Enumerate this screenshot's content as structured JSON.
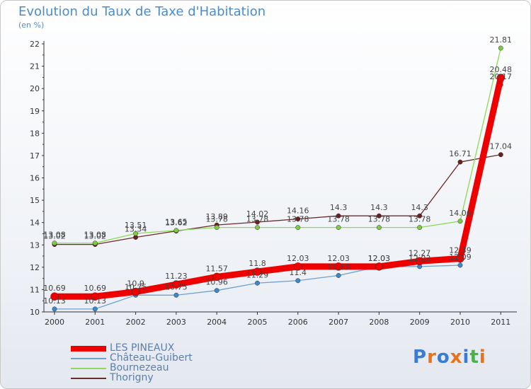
{
  "title": "Evolution du Taux de Taxe d'Habitation",
  "subtitle": "(en %)",
  "logo": "Proxiti",
  "chart_data": {
    "type": "line",
    "title": "Evolution du Taux de Taxe d'Habitation",
    "subtitle": "(en %)",
    "xlabel": "",
    "ylabel": "",
    "x": [
      "2000",
      "2001",
      "2002",
      "2003",
      "2004",
      "2005",
      "2006",
      "2007",
      "2008",
      "2009",
      "2010",
      "2011"
    ],
    "y_ticks": [
      "10",
      "11",
      "12",
      "13",
      "14",
      "15",
      "16",
      "17",
      "18",
      "19",
      "20",
      "21",
      "22"
    ],
    "ylim": [
      10,
      22
    ],
    "grid": false,
    "legend_position": "bottom-left",
    "series": [
      {
        "name": "LES PINEAUX",
        "color": "#ee0000",
        "values": [
          10.69,
          10.69,
          10.9,
          11.23,
          11.57,
          11.8,
          12.03,
          12.03,
          12.03,
          12.27,
          12.39,
          20.48
        ],
        "labels": [
          "10.69",
          "10.69",
          "10.9",
          "11.23",
          "11.57",
          "11.8",
          "12.03",
          "12.03",
          "12.03",
          "12.27",
          "12.39",
          "20.48"
        ]
      },
      {
        "name": "Château-Guibert",
        "color": "#6fa0cd",
        "values": [
          10.13,
          10.13,
          10.75,
          10.75,
          10.96,
          11.29,
          11.4,
          11.63,
          12.03,
          12.03,
          12.09,
          20.17
        ],
        "labels": [
          "10.13",
          "10.13",
          "10.75",
          "10.75",
          "10.96",
          "11.29",
          "11.4",
          "11.63",
          "12.03",
          "12.03",
          "12.09",
          "20.17"
        ]
      },
      {
        "name": "Bournezeau",
        "color": "#8ed957",
        "values": [
          13.08,
          13.08,
          13.51,
          13.65,
          13.78,
          13.78,
          13.78,
          13.78,
          13.78,
          13.78,
          14.06,
          21.81
        ],
        "labels": [
          "13.08",
          "13.08",
          "13.51",
          "13.65",
          "13.78",
          "13.78",
          "13.78",
          "13.78",
          "13.78",
          "13.78",
          "14.06",
          "21.81"
        ]
      },
      {
        "name": "Thorigny",
        "color": "#6b2b2b",
        "values": [
          13.02,
          13.02,
          13.34,
          13.62,
          13.89,
          14.02,
          14.16,
          14.3,
          14.3,
          14.3,
          16.71,
          17.04
        ],
        "labels": [
          "13.02",
          "13.02",
          "13.34",
          "13.62",
          "13.89",
          "14.02",
          "14.16",
          "14.3",
          "14.3",
          "14.3",
          "16.71",
          "17.04"
        ]
      }
    ]
  }
}
